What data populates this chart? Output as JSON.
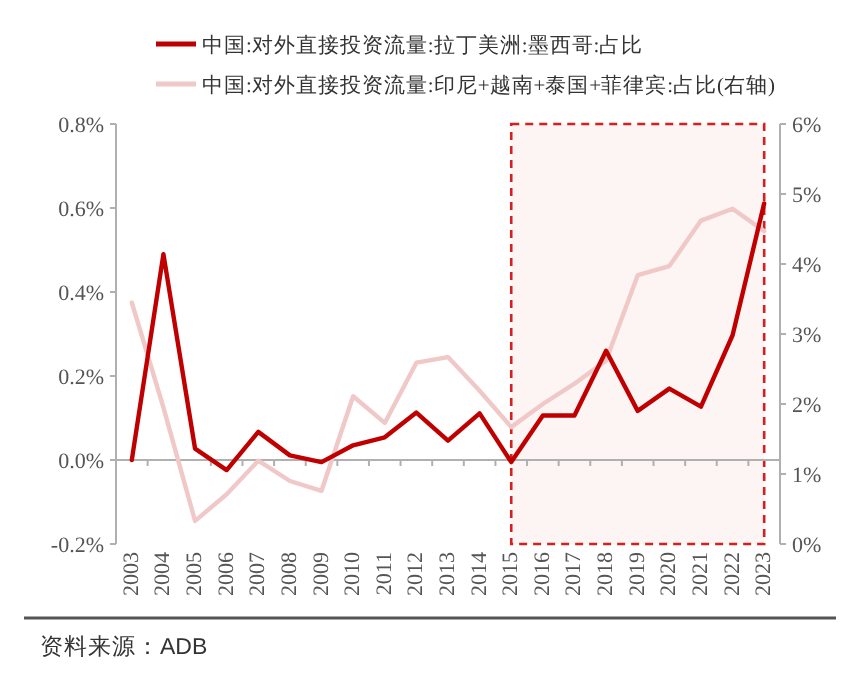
{
  "chart_data": {
    "type": "line",
    "categories": [
      "2003",
      "2004",
      "2005",
      "2006",
      "2007",
      "2008",
      "2009",
      "2010",
      "2011",
      "2012",
      "2013",
      "2014",
      "2015",
      "2016",
      "2017",
      "2018",
      "2019",
      "2020",
      "2021",
      "2022",
      "2023"
    ],
    "series": [
      {
        "name": "中国:对外直接投资流量:拉丁美洲:墨西哥:占比",
        "color": "#c00000",
        "values": [
          0.0,
          0.49,
          0.027,
          -0.024,
          0.067,
          0.011,
          -0.005,
          0.035,
          0.054,
          0.113,
          0.046,
          0.111,
          -0.005,
          0.106,
          0.106,
          0.26,
          0.117,
          0.17,
          0.127,
          0.297,
          0.611
        ]
      },
      {
        "name": "中国:对外直接投资流量:印尼+越南+泰国+菲律宾:占比(右轴)",
        "color": "#f0c8c8",
        "axis": "y2",
        "values": [
          3.45,
          1.95,
          0.33,
          0.71,
          1.19,
          0.9,
          0.76,
          2.11,
          1.73,
          2.59,
          2.67,
          2.19,
          1.67,
          2.0,
          2.29,
          2.62,
          3.84,
          3.97,
          4.62,
          4.79,
          4.47
        ]
      }
    ],
    "ylim": [
      -0.2,
      0.8
    ],
    "yticks": [
      {
        "value": -0.2,
        "label": "-0.2%"
      },
      {
        "value": 0,
        "label": "0.0%"
      },
      {
        "value": 0.2,
        "label": "0.2%"
      },
      {
        "value": 0.4,
        "label": "0.4%"
      },
      {
        "value": 0.6,
        "label": "0.6%"
      },
      {
        "value": 0.8,
        "label": "0.8%"
      }
    ],
    "y2lim": [
      0,
      6
    ],
    "y2ticks": [
      {
        "value": 0,
        "label": "0%"
      },
      {
        "value": 1,
        "label": "1%"
      },
      {
        "value": 2,
        "label": "2%"
      },
      {
        "value": 3,
        "label": "3%"
      },
      {
        "value": 4,
        "label": "4%"
      },
      {
        "value": 5,
        "label": "5%"
      },
      {
        "value": 6,
        "label": "6%"
      }
    ],
    "bands": [
      {
        "axis": "x",
        "from": "2015",
        "to": "2023",
        "color": "#d42020"
      }
    ],
    "legend": "top",
    "marker": "none",
    "line_style": "solid",
    "annotations": [
      "资料来源：ADB"
    ]
  }
}
